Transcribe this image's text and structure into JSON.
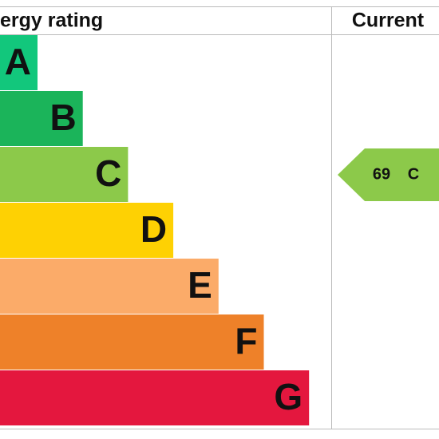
{
  "header": {
    "title": "ergy rating",
    "current_label": "Current"
  },
  "bands": [
    {
      "letter": "A",
      "color": "#12c77c"
    },
    {
      "letter": "B",
      "color": "#1bb45a"
    },
    {
      "letter": "C",
      "color": "#8cc94a"
    },
    {
      "letter": "D",
      "color": "#fed103"
    },
    {
      "letter": "E",
      "color": "#fbab69"
    },
    {
      "letter": "F",
      "color": "#ee8129"
    },
    {
      "letter": "G",
      "color": "#e4173e"
    }
  ],
  "current": {
    "score": 69,
    "band": "C"
  }
}
